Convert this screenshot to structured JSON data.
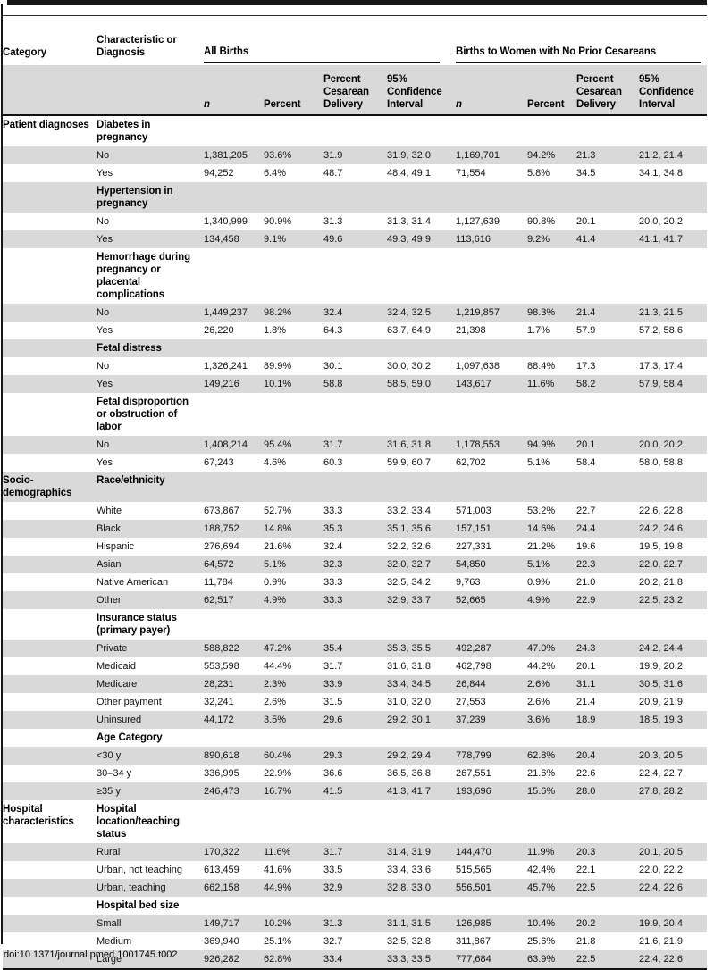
{
  "page": {
    "doi": "doi:10.1371/journal.pmed.1001745.t002"
  },
  "table": {
    "header": {
      "category": "Category",
      "characteristic": "Characteristic or Diagnosis",
      "group1": "All Births",
      "group2": "Births to Women with No Prior Cesareans",
      "n": "n",
      "percent": "Percent",
      "pcd": "Percent Cesarean Delivery",
      "ci": "95% Confidence Interval"
    },
    "rows": [
      {
        "category": "Patient diagnoses",
        "label": "Diabetes in pregnancy",
        "sub": true,
        "values": [
          "",
          "",
          "",
          "",
          "",
          "",
          "",
          ""
        ]
      },
      {
        "label": "No",
        "sub": false,
        "values": [
          "1,381,205",
          "93.6%",
          "31.9",
          "31.9, 32.0",
          "1,169,701",
          "94.2%",
          "21.3",
          "21.2, 21.4"
        ]
      },
      {
        "label": "Yes",
        "sub": false,
        "values": [
          "94,252",
          "6.4%",
          "48.7",
          "48.4, 49.1",
          "71,554",
          "5.8%",
          "34.5",
          "34.1, 34.8"
        ]
      },
      {
        "label": "Hypertension in pregnancy",
        "sub": true,
        "values": [
          "",
          "",
          "",
          "",
          "",
          "",
          "",
          ""
        ]
      },
      {
        "label": "No",
        "sub": false,
        "values": [
          "1,340,999",
          "90.9%",
          "31.3",
          "31.3, 31.4",
          "1,127,639",
          "90.8%",
          "20.1",
          "20.0, 20.2"
        ]
      },
      {
        "label": "Yes",
        "sub": false,
        "values": [
          "134,458",
          "9.1%",
          "49.6",
          "49.3, 49.9",
          "113,616",
          "9.2%",
          "41.4",
          "41.1, 41.7"
        ]
      },
      {
        "label": "Hemorrhage during pregnancy or placental complications",
        "sub": true,
        "values": [
          "",
          "",
          "",
          "",
          "",
          "",
          "",
          ""
        ]
      },
      {
        "label": "No",
        "sub": false,
        "values": [
          "1,449,237",
          "98.2%",
          "32.4",
          "32.4, 32.5",
          "1,219,857",
          "98.3%",
          "21.4",
          "21.3, 21.5"
        ]
      },
      {
        "label": "Yes",
        "sub": false,
        "values": [
          "26,220",
          "1.8%",
          "64.3",
          "63.7, 64.9",
          "21,398",
          "1.7%",
          "57.9",
          "57.2, 58.6"
        ]
      },
      {
        "label": "Fetal distress",
        "sub": true,
        "values": [
          "",
          "",
          "",
          "",
          "",
          "",
          "",
          ""
        ]
      },
      {
        "label": "No",
        "sub": false,
        "values": [
          "1,326,241",
          "89.9%",
          "30.1",
          "30.0, 30.2",
          "1,097,638",
          "88.4%",
          "17.3",
          "17.3, 17.4"
        ]
      },
      {
        "label": "Yes",
        "sub": false,
        "values": [
          "149,216",
          "10.1%",
          "58.8",
          "58.5, 59.0",
          "143,617",
          "11.6%",
          "58.2",
          "57.9, 58.4"
        ]
      },
      {
        "label": "Fetal disproportion or obstruction of labor",
        "sub": true,
        "values": [
          "",
          "",
          "",
          "",
          "",
          "",
          "",
          ""
        ]
      },
      {
        "label": "No",
        "sub": false,
        "values": [
          "1,408,214",
          "95.4%",
          "31.7",
          "31.6, 31.8",
          "1,178,553",
          "94.9%",
          "20.1",
          "20.0, 20.2"
        ]
      },
      {
        "label": "Yes",
        "sub": false,
        "values": [
          "67,243",
          "4.6%",
          "60.3",
          "59.9, 60.7",
          "62,702",
          "5.1%",
          "58.4",
          "58.0, 58.8"
        ]
      },
      {
        "category": "Socio-demographics",
        "label": "Race/ethnicity",
        "sub": true,
        "values": [
          "",
          "",
          "",
          "",
          "",
          "",
          "",
          ""
        ]
      },
      {
        "label": "White",
        "sub": false,
        "values": [
          "673,867",
          "52.7%",
          "33.3",
          "33.2, 33.4",
          "571,003",
          "53.2%",
          "22.7",
          "22.6, 22.8"
        ]
      },
      {
        "label": "Black",
        "sub": false,
        "values": [
          "188,752",
          "14.8%",
          "35.3",
          "35.1, 35.6",
          "157,151",
          "14.6%",
          "24.4",
          "24.2, 24.6"
        ]
      },
      {
        "label": "Hispanic",
        "sub": false,
        "values": [
          "276,694",
          "21.6%",
          "32.4",
          "32.2, 32.6",
          "227,331",
          "21.2%",
          "19.6",
          "19.5, 19.8"
        ]
      },
      {
        "label": "Asian",
        "sub": false,
        "values": [
          "64,572",
          "5.1%",
          "32.3",
          "32.0, 32.7",
          "54,850",
          "5.1%",
          "22.3",
          "22.0, 22.7"
        ]
      },
      {
        "label": "Native American",
        "sub": false,
        "values": [
          "11,784",
          "0.9%",
          "33.3",
          "32.5, 34.2",
          "9,763",
          "0.9%",
          "21.0",
          "20.2, 21.8"
        ]
      },
      {
        "label": "Other",
        "sub": false,
        "values": [
          "62,517",
          "4.9%",
          "33.3",
          "32.9, 33.7",
          "52,665",
          "4.9%",
          "22.9",
          "22.5, 23.2"
        ]
      },
      {
        "label": "Insurance status (primary payer)",
        "sub": true,
        "values": [
          "",
          "",
          "",
          "",
          "",
          "",
          "",
          ""
        ]
      },
      {
        "label": "Private",
        "sub": false,
        "values": [
          "588,822",
          "47.2%",
          "35.4",
          "35.3, 35.5",
          "492,287",
          "47.0%",
          "24.3",
          "24.2, 24.4"
        ]
      },
      {
        "label": "Medicaid",
        "sub": false,
        "values": [
          "553,598",
          "44.4%",
          "31.7",
          "31.6, 31.8",
          "462,798",
          "44.2%",
          "20.1",
          "19.9, 20.2"
        ]
      },
      {
        "label": "Medicare",
        "sub": false,
        "values": [
          "28,231",
          "2.3%",
          "33.9",
          "33.4, 34.5",
          "26,844",
          "2.6%",
          "31.1",
          "30.5, 31.6"
        ]
      },
      {
        "label": "Other payment",
        "sub": false,
        "values": [
          "32,241",
          "2.6%",
          "31.5",
          "31.0, 32.0",
          "27,553",
          "2.6%",
          "21.4",
          "20.9, 21.9"
        ]
      },
      {
        "label": "Uninsured",
        "sub": false,
        "values": [
          "44,172",
          "3.5%",
          "29.6",
          "29.2, 30.1",
          "37,239",
          "3.6%",
          "18.9",
          "18.5, 19.3"
        ]
      },
      {
        "label": "Age Category",
        "sub": true,
        "values": [
          "",
          "",
          "",
          "",
          "",
          "",
          "",
          ""
        ]
      },
      {
        "label": "<30 y",
        "sub": false,
        "values": [
          "890,618",
          "60.4%",
          "29.3",
          "29.2, 29.4",
          "778,799",
          "62.8%",
          "20.4",
          "20.3, 20.5"
        ]
      },
      {
        "label": "30–34 y",
        "sub": false,
        "values": [
          "336,995",
          "22.9%",
          "36.6",
          "36.5, 36.8",
          "267,551",
          "21.6%",
          "22.6",
          "22.4, 22.7"
        ]
      },
      {
        "label": "≥35 y",
        "sub": false,
        "values": [
          "246,473",
          "16.7%",
          "41.5",
          "41.3, 41.7",
          "193,696",
          "15.6%",
          "28.0",
          "27.8, 28.2"
        ]
      },
      {
        "category": "Hospital characteristics",
        "label": "Hospital location/teaching status",
        "sub": true,
        "values": [
          "",
          "",
          "",
          "",
          "",
          "",
          "",
          ""
        ]
      },
      {
        "label": "Rural",
        "sub": false,
        "values": [
          "170,322",
          "11.6%",
          "31.7",
          "31.4, 31.9",
          "144,470",
          "11.9%",
          "20.3",
          "20.1, 20.5"
        ]
      },
      {
        "label": "Urban, not teaching",
        "sub": false,
        "values": [
          "613,459",
          "41.6%",
          "33.5",
          "33.4, 33.6",
          "515,565",
          "42.4%",
          "22.1",
          "22.0, 22.2"
        ]
      },
      {
        "label": "Urban, teaching",
        "sub": false,
        "values": [
          "662,158",
          "44.9%",
          "32.9",
          "32.8, 33.0",
          "556,501",
          "45.7%",
          "22.5",
          "22.4, 22.6"
        ]
      },
      {
        "label": "Hospital bed size",
        "sub": true,
        "values": [
          "",
          "",
          "",
          "",
          "",
          "",
          "",
          ""
        ]
      },
      {
        "label": "Small",
        "sub": false,
        "values": [
          "149,717",
          "10.2%",
          "31.3",
          "31.1, 31.5",
          "126,985",
          "10.4%",
          "20.2",
          "19.9, 20.4"
        ]
      },
      {
        "label": "Medium",
        "sub": false,
        "values": [
          "369,940",
          "25.1%",
          "32.7",
          "32.5, 32.8",
          "311,867",
          "25.6%",
          "21.8",
          "21.6, 21.9"
        ]
      },
      {
        "label": "Large",
        "sub": false,
        "values": [
          "926,282",
          "62.8%",
          "33.4",
          "33.3, 33.5",
          "777,684",
          "63.9%",
          "22.5",
          "22.4, 22.6"
        ]
      }
    ],
    "colors": {
      "shade": "#d9d9d9",
      "rule": "#111111"
    }
  }
}
